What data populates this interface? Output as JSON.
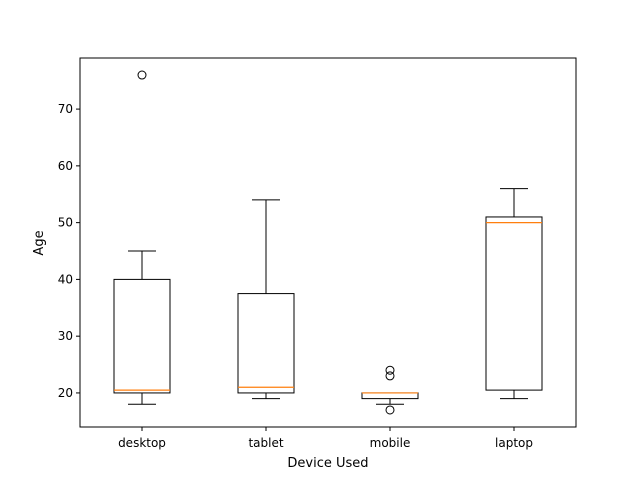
{
  "chart_data": {
    "type": "box",
    "xlabel": "Device Used",
    "ylabel": "Age",
    "categories": [
      "desktop",
      "tablet",
      "mobile",
      "laptop"
    ],
    "ylim": [
      14,
      79
    ],
    "yticks": [
      20,
      30,
      40,
      50,
      60,
      70
    ],
    "grid": false,
    "boxes": [
      {
        "category": "desktop",
        "whisker_low": 18,
        "q1": 20,
        "median": 20.5,
        "q3": 40,
        "whisker_high": 45,
        "outliers": [
          76
        ]
      },
      {
        "category": "tablet",
        "whisker_low": 19,
        "q1": 20,
        "median": 21,
        "q3": 37.5,
        "whisker_high": 54,
        "outliers": []
      },
      {
        "category": "mobile",
        "whisker_low": 18,
        "q1": 19,
        "median": 20,
        "q3": 20,
        "whisker_high": 20,
        "outliers": [
          24,
          23,
          17
        ]
      },
      {
        "category": "laptop",
        "whisker_low": 19,
        "q1": 20.5,
        "median": 50,
        "q3": 51,
        "whisker_high": 56,
        "outliers": []
      }
    ],
    "colors": {
      "box": "#000000",
      "median": "#ff7f0e",
      "outlier": "#000000"
    }
  }
}
